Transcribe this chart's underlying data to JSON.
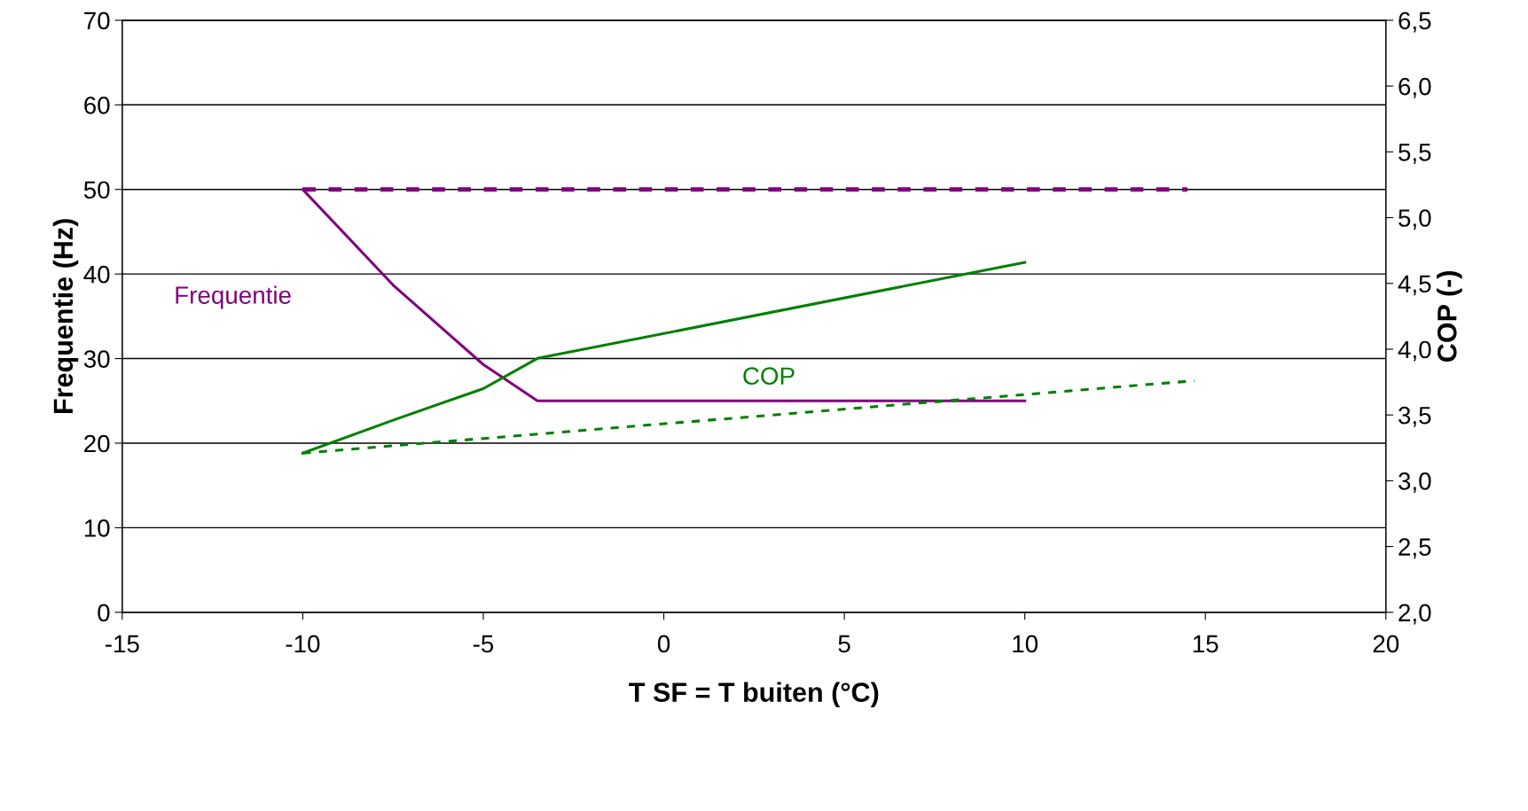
{
  "chart_data": {
    "type": "line",
    "xlabel": "T SF = T buiten (°C)",
    "ylabel": "Frequentie (Hz)",
    "y2label": "COP (-)",
    "xlim": [
      -15,
      20
    ],
    "xticks": [
      -15,
      -10,
      -5,
      0,
      5,
      10,
      15,
      20
    ],
    "ylim": [
      0,
      70
    ],
    "yticks": [
      0,
      10,
      20,
      30,
      40,
      50,
      60,
      70
    ],
    "y2lim": [
      2.0,
      6.5
    ],
    "y2ticks": [
      {
        "value": 2.0,
        "label": "2,0"
      },
      {
        "value": 2.5,
        "label": "2,5"
      },
      {
        "value": 3.0,
        "label": "3,0"
      },
      {
        "value": 3.5,
        "label": "3,5"
      },
      {
        "value": 4.0,
        "label": "4,0"
      },
      {
        "value": 4.5,
        "label": "4,5"
      },
      {
        "value": 5.0,
        "label": "5,0"
      },
      {
        "value": 5.5,
        "label": "5,5"
      },
      {
        "value": 6.0,
        "label": "6,0"
      },
      {
        "value": 6.5,
        "label": "6,5"
      }
    ],
    "grid": "y",
    "legend": false,
    "marker": "none",
    "series": [
      {
        "name": "Frequentie",
        "color": "#800080",
        "x": [
          -10,
          -7.5,
          -5,
          -3.5,
          10
        ],
        "values": [
          50,
          38.7,
          29.3,
          25,
          25
        ],
        "line_style": "solid"
      },
      {
        "color": "#800080",
        "x": [
          -10,
          14.5
        ],
        "values": [
          50,
          50
        ],
        "line_style": "dashed"
      },
      {
        "name": "COP",
        "color": "#008000",
        "axis": "y2",
        "x": [
          -10,
          -7.5,
          -5,
          -3.5,
          10
        ],
        "values": [
          3.21,
          3.46,
          3.7,
          3.93,
          4.66
        ],
        "line_style": "solid"
      },
      {
        "color": "#008000",
        "axis": "y2",
        "x": [
          -10,
          14.7
        ],
        "values": [
          3.21,
          3.76
        ],
        "line_style": "dashed"
      }
    ]
  }
}
